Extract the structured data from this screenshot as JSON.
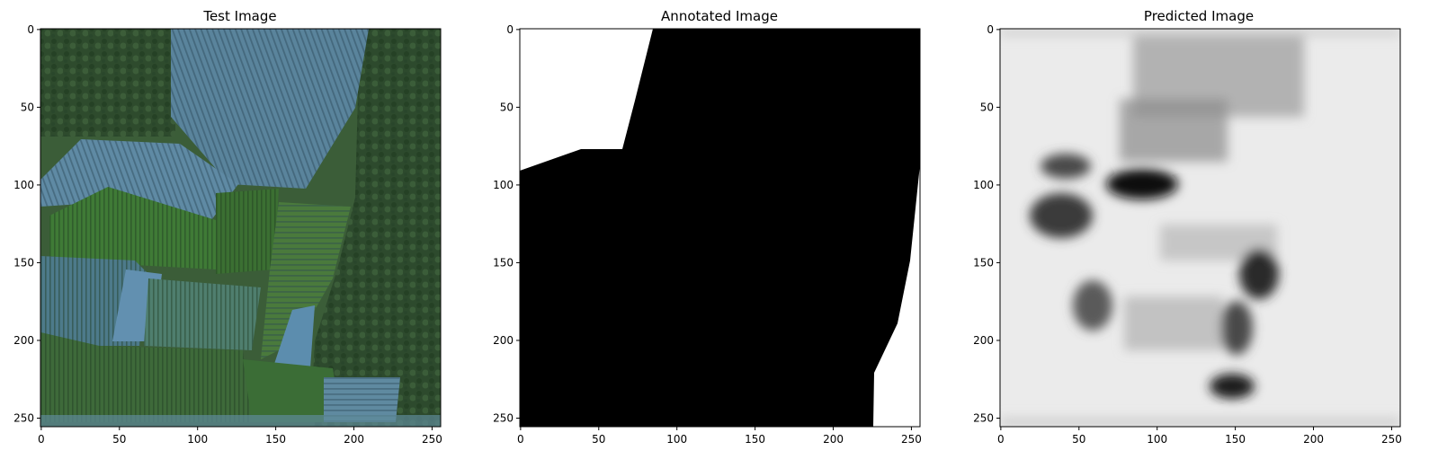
{
  "figure": {
    "panels": [
      {
        "title": "Test Image",
        "kind": "rgb-aerial-farmland",
        "x_ticks": [
          "0",
          "50",
          "100",
          "150",
          "200",
          "250"
        ],
        "y_ticks": [
          "0",
          "50",
          "100",
          "150",
          "200",
          "250"
        ]
      },
      {
        "title": "Annotated Image",
        "kind": "binary-mask",
        "x_ticks": [
          "0",
          "50",
          "100",
          "150",
          "200",
          "250"
        ],
        "y_ticks": [
          "0",
          "50",
          "100",
          "150",
          "200",
          "250"
        ]
      },
      {
        "title": "Predicted Image",
        "kind": "grayscale-prediction",
        "x_ticks": [
          "0",
          "50",
          "100",
          "150",
          "200",
          "250"
        ],
        "y_ticks": [
          "0",
          "50",
          "100",
          "150",
          "200",
          "250"
        ]
      }
    ],
    "image_size": [
      256,
      256
    ],
    "colors": {
      "mask_foreground": "#000000",
      "mask_background": "#ffffff",
      "field_green": "#3f6b35",
      "field_blue": "#5b86a0",
      "trees_dark": "#2c4a2c"
    }
  }
}
